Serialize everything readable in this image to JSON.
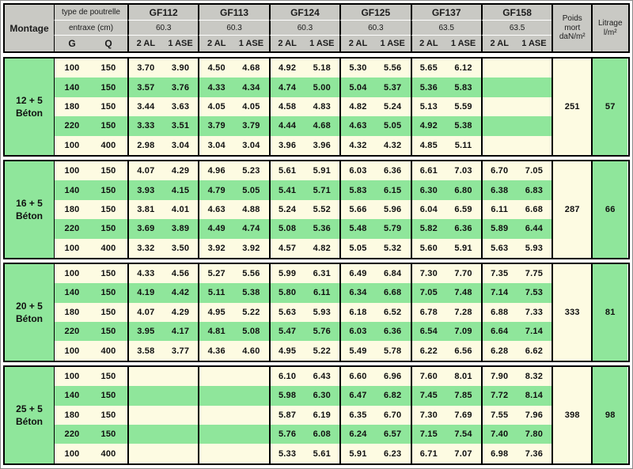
{
  "colors": {
    "green": "#8fe69b",
    "cream": "#fdfbe2",
    "gray": "#c9c9c4"
  },
  "table": {
    "corner_label": "Montage",
    "row1_label": "type de poutrelle",
    "row2_label": "entraxe (cm)",
    "col_g": "G",
    "col_q": "Q",
    "subcols": [
      "2 AL",
      "1 ASE"
    ],
    "poutrelles": [
      {
        "name": "GF112",
        "entraxe": "60.3"
      },
      {
        "name": "GF113",
        "entraxe": "60.3"
      },
      {
        "name": "GF124",
        "entraxe": "60.3"
      },
      {
        "name": "GF125",
        "entraxe": "60.3"
      },
      {
        "name": "GF137",
        "entraxe": "63.5"
      },
      {
        "name": "GF158",
        "entraxe": "63.5"
      }
    ],
    "poids_label": [
      "Poids",
      "mort",
      "daN/m²"
    ],
    "litrage_label": [
      "Litrage",
      "l/m²"
    ],
    "blocks": [
      {
        "montage": "12 + 5\nBéton",
        "poids_mort": "251",
        "litrage": "57",
        "rows": [
          {
            "g": "100",
            "q": "150",
            "values": [
              "3.70",
              "3.90",
              "4.50",
              "4.68",
              "4.92",
              "5.18",
              "5.30",
              "5.56",
              "5.65",
              "6.12",
              "",
              ""
            ]
          },
          {
            "g": "140",
            "q": "150",
            "values": [
              "3.57",
              "3.76",
              "4.33",
              "4.34",
              "4.74",
              "5.00",
              "5.04",
              "5.37",
              "5.36",
              "5.83",
              "",
              ""
            ]
          },
          {
            "g": "180",
            "q": "150",
            "values": [
              "3.44",
              "3.63",
              "4.05",
              "4.05",
              "4.58",
              "4.83",
              "4.82",
              "5.24",
              "5.13",
              "5.59",
              "",
              ""
            ]
          },
          {
            "g": "220",
            "q": "150",
            "values": [
              "3.33",
              "3.51",
              "3.79",
              "3.79",
              "4.44",
              "4.68",
              "4.63",
              "5.05",
              "4.92",
              "5.38",
              "",
              ""
            ]
          },
          {
            "g": "100",
            "q": "400",
            "values": [
              "2.98",
              "3.04",
              "3.04",
              "3.04",
              "3.96",
              "3.96",
              "4.32",
              "4.32",
              "4.85",
              "5.11",
              "",
              ""
            ]
          }
        ]
      },
      {
        "montage": "16 + 5\nBéton",
        "poids_mort": "287",
        "litrage": "66",
        "rows": [
          {
            "g": "100",
            "q": "150",
            "values": [
              "4.07",
              "4.29",
              "4.96",
              "5.23",
              "5.61",
              "5.91",
              "6.03",
              "6.36",
              "6.61",
              "7.03",
              "6.70",
              "7.05"
            ]
          },
          {
            "g": "140",
            "q": "150",
            "values": [
              "3.93",
              "4.15",
              "4.79",
              "5.05",
              "5.41",
              "5.71",
              "5.83",
              "6.15",
              "6.30",
              "6.80",
              "6.38",
              "6.83"
            ]
          },
          {
            "g": "180",
            "q": "150",
            "values": [
              "3.81",
              "4.01",
              "4.63",
              "4.88",
              "5.24",
              "5.52",
              "5.66",
              "5.96",
              "6.04",
              "6.59",
              "6.11",
              "6.68"
            ]
          },
          {
            "g": "220",
            "q": "150",
            "values": [
              "3.69",
              "3.89",
              "4.49",
              "4.74",
              "5.08",
              "5.36",
              "5.48",
              "5.79",
              "5.82",
              "6.36",
              "5.89",
              "6.44"
            ]
          },
          {
            "g": "100",
            "q": "400",
            "values": [
              "3.32",
              "3.50",
              "3.92",
              "3.92",
              "4.57",
              "4.82",
              "5.05",
              "5.32",
              "5.60",
              "5.91",
              "5.63",
              "5.93"
            ]
          }
        ]
      },
      {
        "montage": "20 + 5\nBéton",
        "poids_mort": "333",
        "litrage": "81",
        "rows": [
          {
            "g": "100",
            "q": "150",
            "values": [
              "4.33",
              "4.56",
              "5.27",
              "5.56",
              "5.99",
              "6.31",
              "6.49",
              "6.84",
              "7.30",
              "7.70",
              "7.35",
              "7.75"
            ]
          },
          {
            "g": "140",
            "q": "150",
            "values": [
              "4.19",
              "4.42",
              "5.11",
              "5.38",
              "5.80",
              "6.11",
              "6.34",
              "6.68",
              "7.05",
              "7.48",
              "7.14",
              "7.53"
            ]
          },
          {
            "g": "180",
            "q": "150",
            "values": [
              "4.07",
              "4.29",
              "4.95",
              "5.22",
              "5.63",
              "5.93",
              "6.18",
              "6.52",
              "6.78",
              "7.28",
              "6.88",
              "7.33"
            ]
          },
          {
            "g": "220",
            "q": "150",
            "values": [
              "3.95",
              "4.17",
              "4.81",
              "5.08",
              "5.47",
              "5.76",
              "6.03",
              "6.36",
              "6.54",
              "7.09",
              "6.64",
              "7.14"
            ]
          },
          {
            "g": "100",
            "q": "400",
            "values": [
              "3.58",
              "3.77",
              "4.36",
              "4.60",
              "4.95",
              "5.22",
              "5.49",
              "5.78",
              "6.22",
              "6.56",
              "6.28",
              "6.62"
            ]
          }
        ]
      },
      {
        "montage": "25 + 5\nBéton",
        "poids_mort": "398",
        "litrage": "98",
        "rows": [
          {
            "g": "100",
            "q": "150",
            "values": [
              "",
              "",
              "",
              "",
              "6.10",
              "6.43",
              "6.60",
              "6.96",
              "7.60",
              "8.01",
              "7.90",
              "8.32"
            ]
          },
          {
            "g": "140",
            "q": "150",
            "values": [
              "",
              "",
              "",
              "",
              "5.98",
              "6.30",
              "6.47",
              "6.82",
              "7.45",
              "7.85",
              "7.72",
              "8.14"
            ]
          },
          {
            "g": "180",
            "q": "150",
            "values": [
              "",
              "",
              "",
              "",
              "5.87",
              "6.19",
              "6.35",
              "6.70",
              "7.30",
              "7.69",
              "7.55",
              "7.96"
            ]
          },
          {
            "g": "220",
            "q": "150",
            "values": [
              "",
              "",
              "",
              "",
              "5.76",
              "6.08",
              "6.24",
              "6.57",
              "7.15",
              "7.54",
              "7.40",
              "7.80"
            ]
          },
          {
            "g": "100",
            "q": "400",
            "values": [
              "",
              "",
              "",
              "",
              "5.33",
              "5.61",
              "5.91",
              "6.23",
              "6.71",
              "7.07",
              "6.98",
              "7.36"
            ]
          }
        ]
      }
    ]
  }
}
